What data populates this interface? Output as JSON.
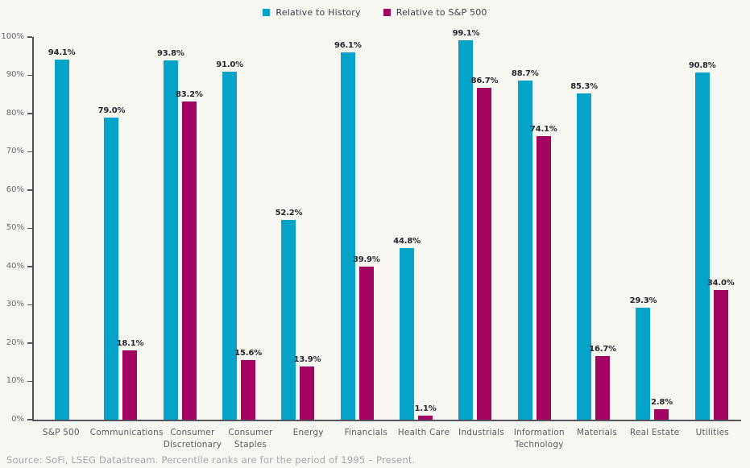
{
  "legend": {
    "items": [
      {
        "label": "Relative to History",
        "color": "#05a3c8"
      },
      {
        "label": "Relative to S&P 500",
        "color": "#a2045f"
      }
    ]
  },
  "source": "Source: SoFi, LSEG Datastream. Percentile ranks are for the period of 1995 – Present.",
  "colors": {
    "background": "#f8f6f1",
    "axis": "#54555b",
    "tick_label": "#66666e",
    "category_label": "#5a5a62",
    "value_label": "#26262e",
    "series_history": "#05a3c8",
    "series_sp500": "#a2045f"
  },
  "chart_data": {
    "type": "bar",
    "title": "",
    "xlabel": "",
    "ylabel": "",
    "ylim": [
      0,
      100
    ],
    "grid": false,
    "legend_position": "top-center",
    "y_ticks": [
      "0%",
      "10%",
      "20%",
      "30%",
      "40%",
      "50%",
      "60%",
      "70%",
      "80%",
      "90%",
      "100%"
    ],
    "categories": [
      "S&P 500",
      "Communications",
      "Consumer\nDiscretionary",
      "Consumer\nStaples",
      "Energy",
      "Financials",
      "Health Care",
      "Industrials",
      "Information\nTechnology",
      "Materials",
      "Real Estate",
      "Utilities"
    ],
    "series": [
      {
        "name": "Relative to History",
        "color": "#05a3c8",
        "values": [
          94.1,
          79.0,
          93.8,
          91.0,
          52.2,
          96.1,
          44.8,
          99.1,
          88.7,
          85.3,
          29.3,
          90.8
        ]
      },
      {
        "name": "Relative to S&P 500",
        "color": "#a2045f",
        "values": [
          null,
          18.1,
          83.2,
          15.6,
          13.9,
          39.9,
          1.1,
          86.7,
          74.1,
          16.7,
          2.8,
          34.0
        ]
      }
    ],
    "value_label_format": "{value}%"
  }
}
